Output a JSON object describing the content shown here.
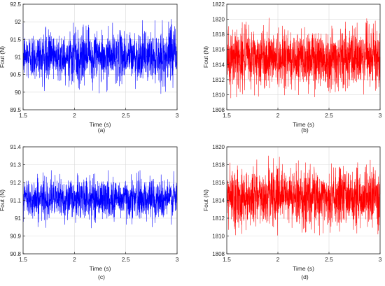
{
  "chart_data": [
    {
      "type": "line",
      "panel_label": "(a)",
      "xlabel": "Time (s)",
      "ylabel": "Fout (N)",
      "xlim": [
        1.5,
        3
      ],
      "ylim": [
        89.5,
        92.5
      ],
      "xticks": [
        "1.5",
        "2",
        "2.5",
        "3"
      ],
      "yticks": [
        "89.5",
        "90",
        "90.5",
        "91",
        "91.5",
        "92",
        "92.5"
      ],
      "grid": true,
      "series": [
        {
          "color": "#0000ff",
          "x_range": [
            1.5,
            3
          ],
          "mean": 90.95,
          "typical_min": 90.35,
          "typical_max": 91.7,
          "min": 89.95,
          "max": 92.1
        }
      ]
    },
    {
      "type": "line",
      "panel_label": "(b)",
      "xlabel": "Time (s)",
      "ylabel": "Fout (N)",
      "xlim": [
        1.5,
        3
      ],
      "ylim": [
        1808,
        1822
      ],
      "xticks": [
        "1.5",
        "2",
        "2.5",
        "3"
      ],
      "yticks": [
        "1808",
        "1810",
        "1812",
        "1814",
        "1816",
        "1818",
        "1820",
        "1822"
      ],
      "grid": true,
      "series": [
        {
          "color": "#ff0000",
          "x_range": [
            1.5,
            3
          ],
          "mean": 1814.8,
          "typical_min": 1811.0,
          "typical_max": 1818.8,
          "min": 1809.5,
          "max": 1820.2
        }
      ]
    },
    {
      "type": "line",
      "panel_label": "(c)",
      "xlabel": "Time (s)",
      "ylabel": "Fout (N)",
      "xlim": [
        1.5,
        3
      ],
      "ylim": [
        90.8,
        91.4
      ],
      "xticks": [
        "1.5",
        "2",
        "2.5",
        "3"
      ],
      "yticks": [
        "90.8",
        "90.9",
        "91",
        "91.1",
        "91.2",
        "91.3",
        "91.4"
      ],
      "grid": true,
      "series": [
        {
          "color": "#0000ff",
          "x_range": [
            1.5,
            3
          ],
          "mean": 91.1,
          "typical_min": 91.0,
          "typical_max": 91.22,
          "min": 90.9,
          "max": 91.3
        }
      ]
    },
    {
      "type": "line",
      "panel_label": "(d)",
      "xlabel": "Time (s)",
      "ylabel": "Fout (N)",
      "xlim": [
        1.5,
        3
      ],
      "ylim": [
        1808,
        1820
      ],
      "xticks": [
        "1.5",
        "2",
        "2.5",
        "3"
      ],
      "yticks": [
        "1808",
        "1810",
        "1812",
        "1814",
        "1816",
        "1818",
        "1820"
      ],
      "grid": true,
      "series": [
        {
          "color": "#ff0000",
          "x_range": [
            1.5,
            3
          ],
          "mean": 1814.5,
          "typical_min": 1811.2,
          "typical_max": 1817.6,
          "min": 1810.0,
          "max": 1819.0
        }
      ]
    }
  ]
}
